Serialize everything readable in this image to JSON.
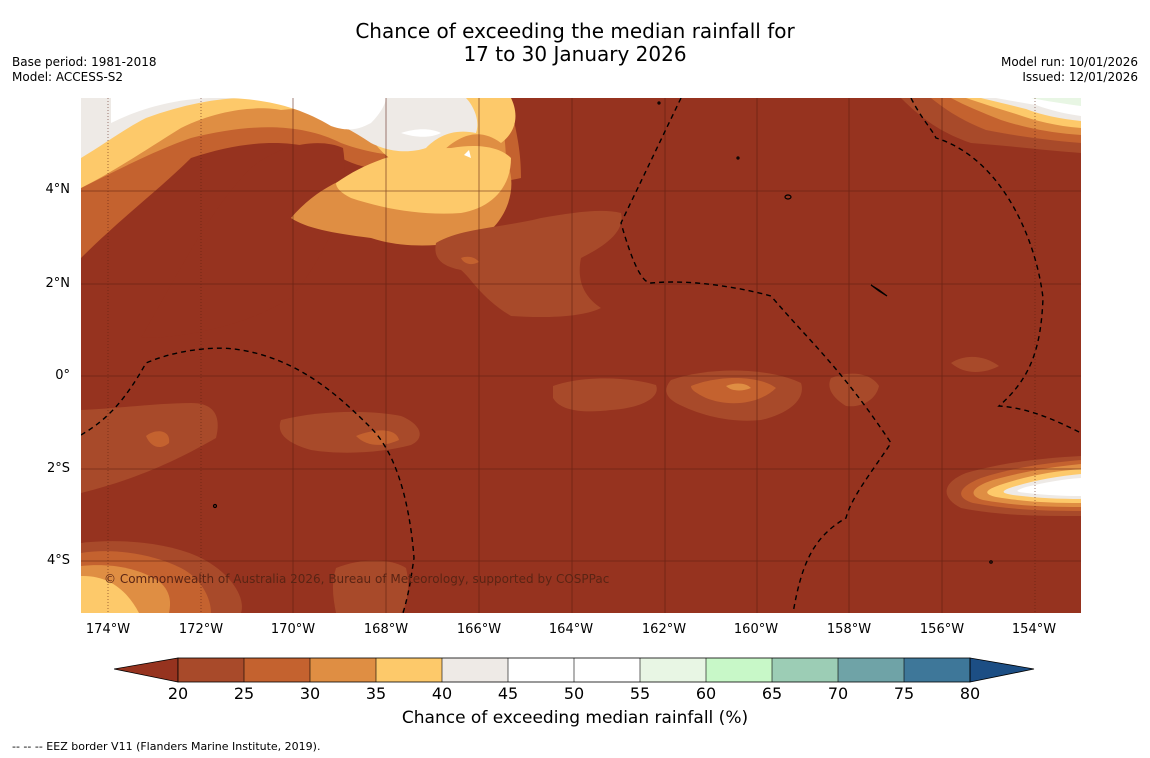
{
  "header": {
    "title_line1": "Chance of exceeding the median rainfall for",
    "title_line2": "17 to 30 January 2026",
    "base_period": "Base period: 1981-2018",
    "model": "Model: ACCESS-S2",
    "model_run": "Model run: 10/01/2026",
    "issued": "Issued: 12/01/2026"
  },
  "map": {
    "lat_labels": [
      "4°N",
      "2°N",
      "0°",
      "2°S",
      "4°S"
    ],
    "lon_labels": [
      "174°W",
      "172°W",
      "170°W",
      "168°W",
      "166°W",
      "164°W",
      "162°W",
      "160°W",
      "158°W",
      "156°W",
      "154°W"
    ],
    "copyright": "© Commonwealth of Australia 2026, Bureau of Meteorology, supported by COSPPac",
    "colors": {
      "lt20": "#96331f",
      "c20_25": "#a84a2a",
      "c25_30": "#c4622f",
      "c30_35": "#df8e43",
      "c35_40": "#fdc96a",
      "c40_45": "#eeeae6",
      "c45_55": "#ffffff",
      "c55_60": "#e8f6e4",
      "c60_65": "#c8f8c8",
      "c65_70": "#9ccdb5",
      "c70_75": "#6fa3a7",
      "c75_80": "#3e7799",
      "gt80": "#1c4e84"
    }
  },
  "colorbar": {
    "ticks": [
      "20",
      "25",
      "30",
      "35",
      "40",
      "45",
      "50",
      "55",
      "60",
      "65",
      "70",
      "75",
      "80"
    ],
    "title": "Chance of exceeding median rainfall (%)"
  },
  "footnote": "--  --  -- EEZ border V11 (Flanders Marine Institute, 2019)."
}
